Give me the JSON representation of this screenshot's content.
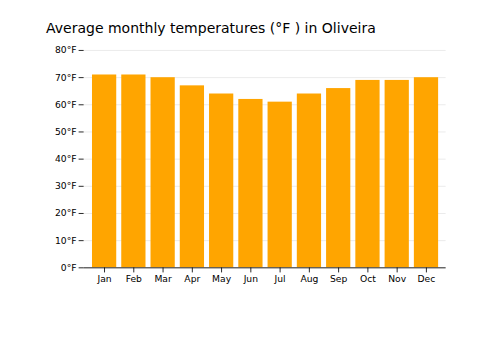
{
  "chart_data": {
    "type": "bar",
    "title": "Average monthly temperatures (°F ) in Oliveira",
    "categories": [
      "Jan",
      "Feb",
      "Mar",
      "Apr",
      "May",
      "Jun",
      "Jul",
      "Aug",
      "Sep",
      "Oct",
      "Nov",
      "Dec"
    ],
    "values": [
      71,
      71,
      70,
      67,
      64,
      62,
      61,
      64,
      66,
      69,
      69,
      70
    ],
    "color": "#FFA500",
    "ylim": [
      0,
      80
    ],
    "yticks": [
      {
        "value": 0,
        "label": "0°F"
      },
      {
        "value": 10,
        "label": "10°F"
      },
      {
        "value": 20,
        "label": "20°F"
      },
      {
        "value": 30,
        "label": "30°F"
      },
      {
        "value": 40,
        "label": "40°F"
      },
      {
        "value": 50,
        "label": "50°F"
      },
      {
        "value": 60,
        "label": "60°F"
      },
      {
        "value": 70,
        "label": "70°F"
      },
      {
        "value": 80,
        "label": "80°F"
      }
    ],
    "grid": true
  }
}
